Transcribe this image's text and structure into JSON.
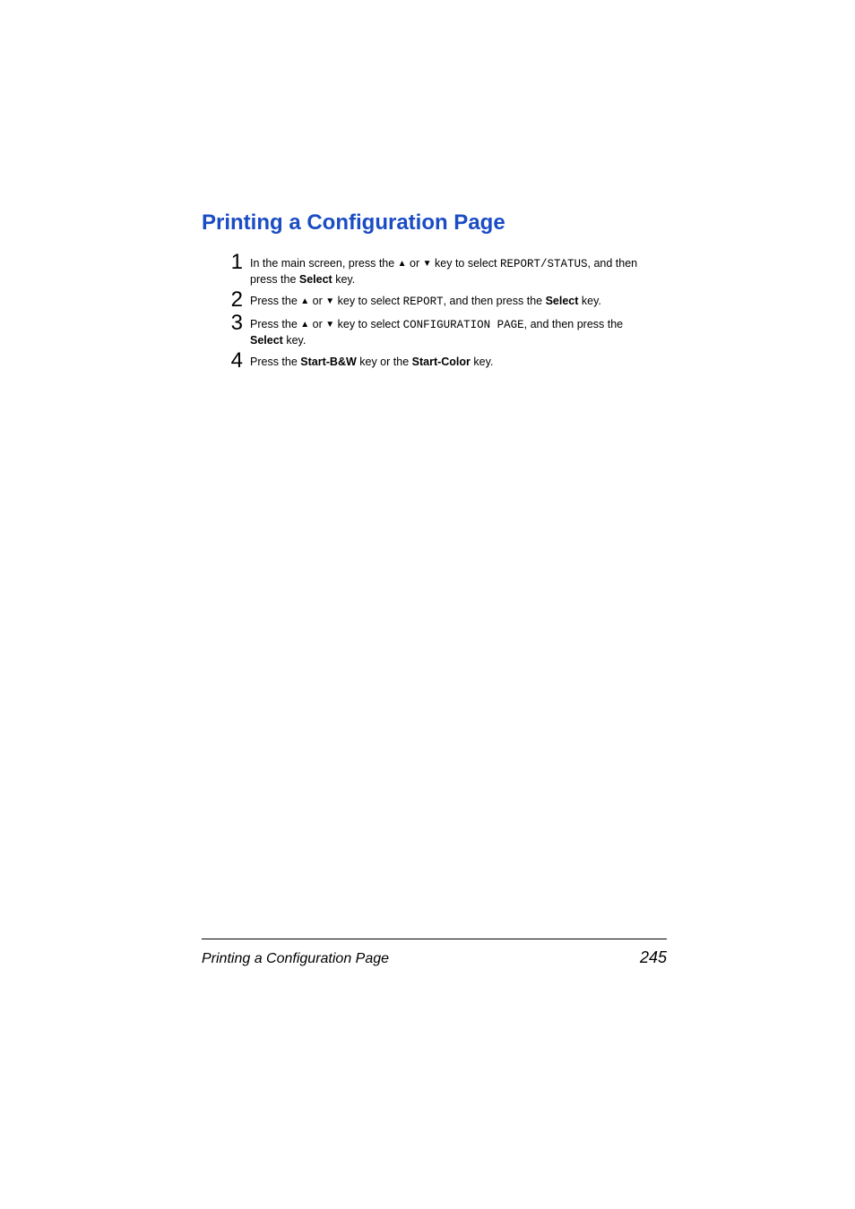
{
  "heading": "Printing a Configuration Page",
  "triangles": {
    "up": "▲",
    "down": "▼"
  },
  "steps": {
    "s1": {
      "num": "1",
      "pre1": "In the main screen, press the ",
      "or": " or ",
      "pre2": " key to select ",
      "code": "REPORT/STATUS",
      "post": ", and then press the ",
      "bold": "Select",
      "tail": " key."
    },
    "s2": {
      "num": "2",
      "pre1": "Press the ",
      "or": " or ",
      "pre2": " key to select ",
      "code": "REPORT",
      "post": ", and then press the ",
      "bold": "Select",
      "tail": " key."
    },
    "s3": {
      "num": "3",
      "pre1": "Press the ",
      "or": " or ",
      "pre2": " key to select ",
      "code": "CONFIGURATION PAGE",
      "post": ", and then press the ",
      "bold": "Select",
      "tail": " key."
    },
    "s4": {
      "num": "4",
      "pre": "Press the ",
      "bold1": "Start-B&W",
      "mid": " key or the ",
      "bold2": "Start-Color",
      "tail": " key."
    }
  },
  "footer": {
    "title": "Printing a Configuration Page",
    "page": "245"
  }
}
